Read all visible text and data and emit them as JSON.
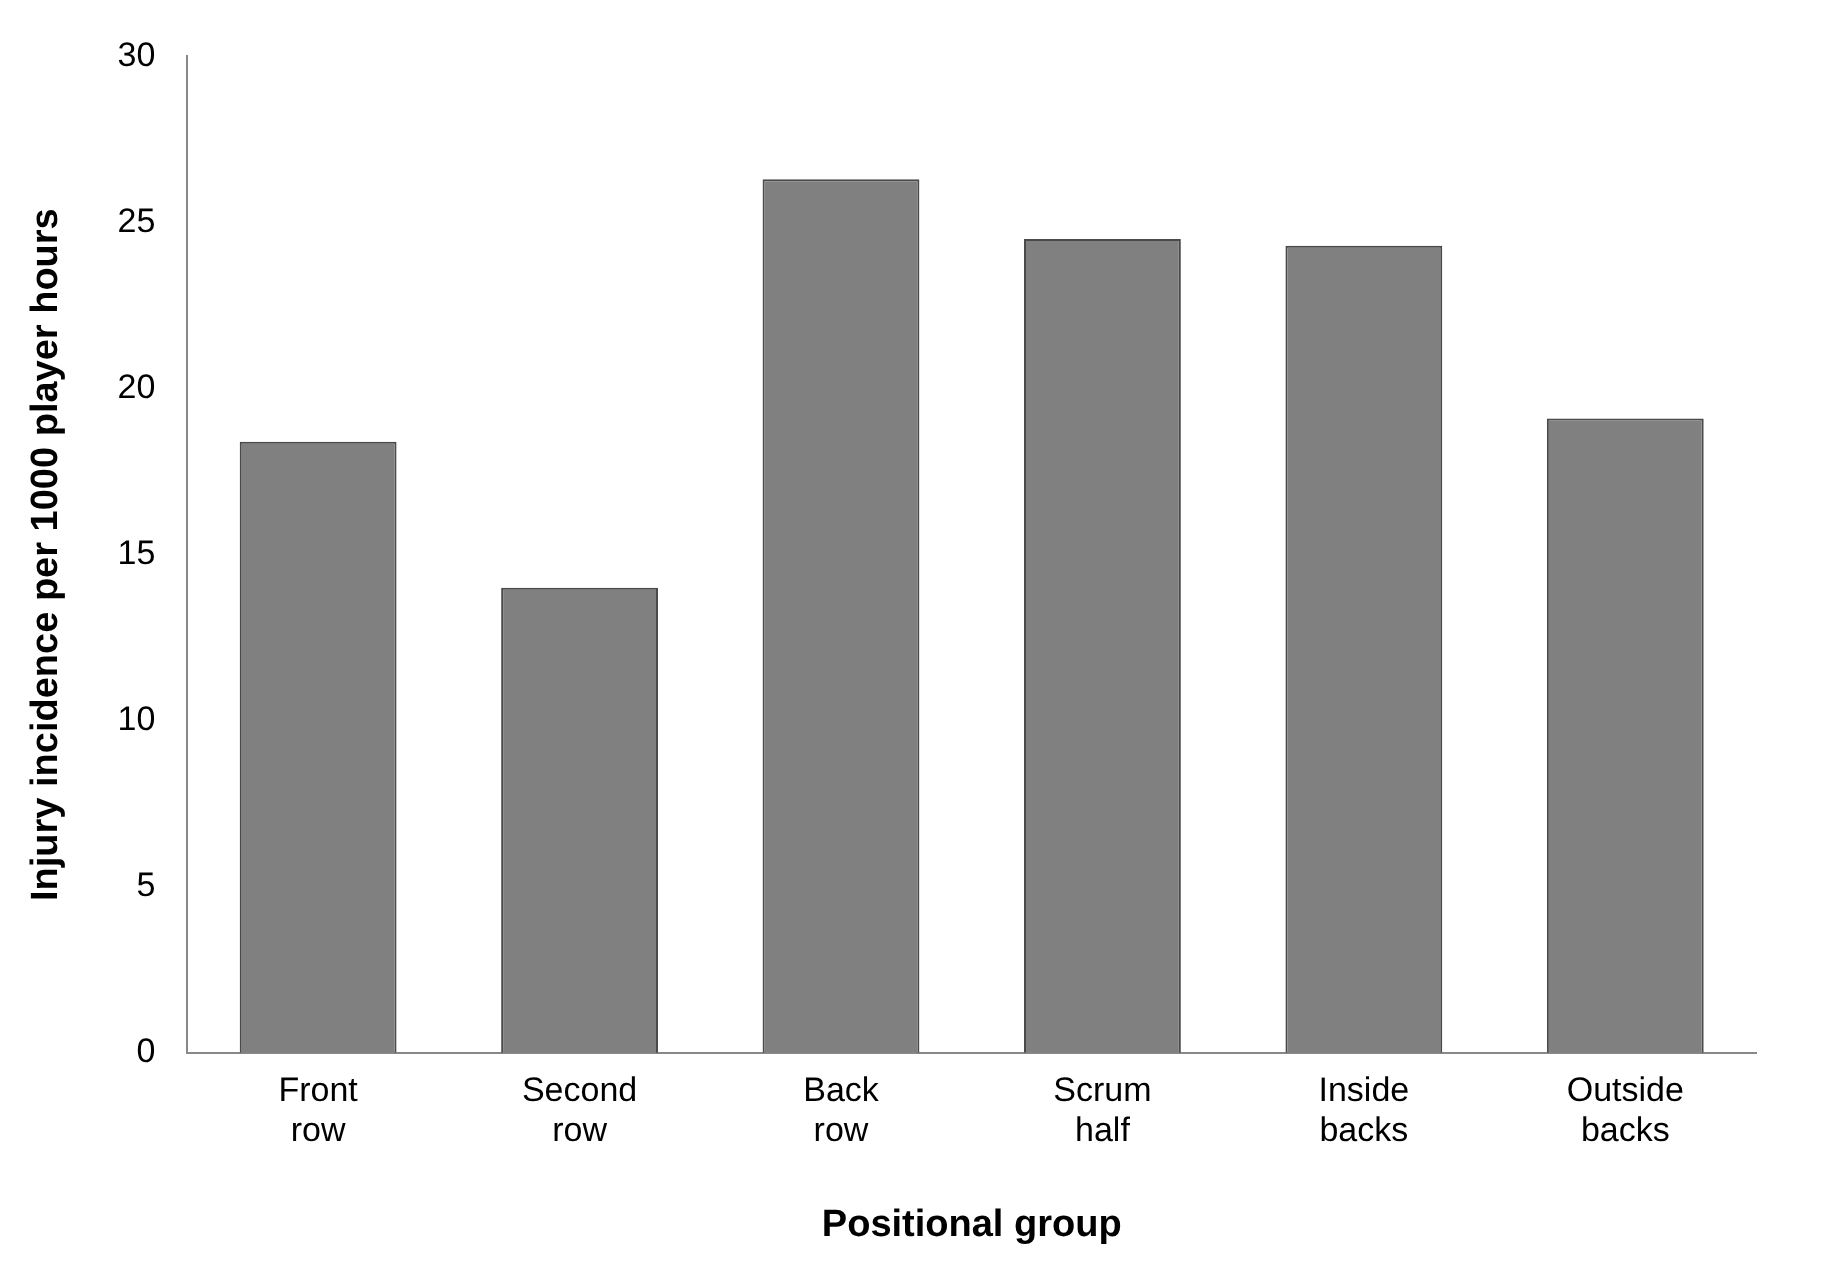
{
  "chart_data": {
    "type": "bar",
    "xlabel": "Positional group",
    "ylabel": "Injury incidence per 1000 player hours",
    "categories": [
      "Front row",
      "Second row",
      "Back row",
      "Scrum half",
      "Inside backs",
      "Outside backs"
    ],
    "values": [
      18.4,
      14,
      26.3,
      24.5,
      24.3,
      19.1
    ],
    "color": "#808080",
    "ylim": [
      0,
      30
    ],
    "yticks": [
      0,
      5,
      10,
      15,
      20,
      25,
      30
    ],
    "grid": false,
    "legend": false
  }
}
